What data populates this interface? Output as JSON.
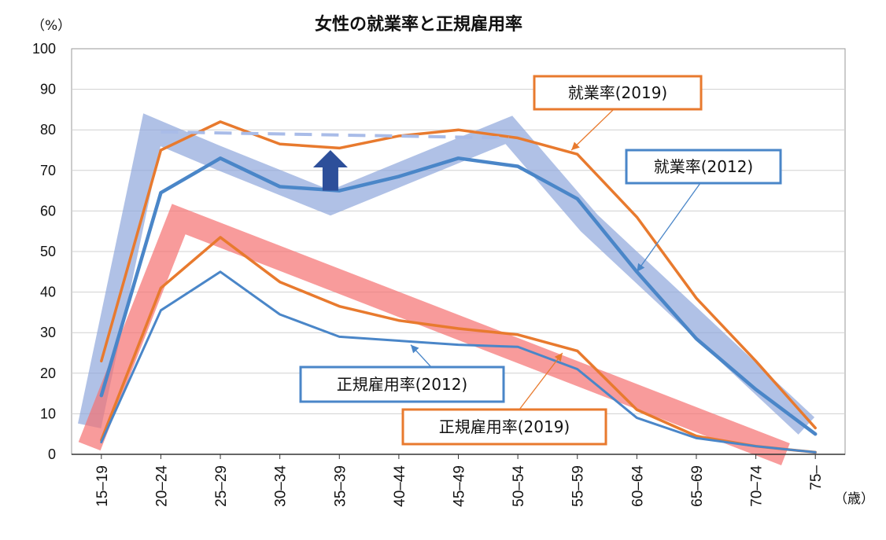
{
  "chart_data": {
    "type": "line",
    "title": "女性の就業率と正規雇用率",
    "y_unit": "（%）",
    "x_unit": "（歳）",
    "ylim": [
      0,
      100
    ],
    "yticks": [
      0,
      10,
      20,
      30,
      40,
      50,
      60,
      70,
      80,
      90,
      100
    ],
    "grid": true,
    "categories": [
      "15–19",
      "20–24",
      "25–29",
      "30–34",
      "35–39",
      "40–44",
      "45–49",
      "50–54",
      "55–59",
      "60–64",
      "65–69",
      "70–74",
      "75–"
    ],
    "series": [
      {
        "name": "就業率(2019)",
        "color": "#E87A2E",
        "values": [
          23,
          75,
          82,
          76.5,
          75.5,
          78.5,
          80,
          78,
          74,
          58.5,
          38.5,
          23,
          6.5
        ]
      },
      {
        "name": "就業率(2012)",
        "color": "#4A86C8",
        "values": [
          14.5,
          64.5,
          73,
          66,
          65,
          68.5,
          73,
          71,
          63,
          45,
          28.5,
          16,
          5
        ]
      },
      {
        "name": "正規雇用率(2019)",
        "color": "#E87A2E",
        "values": [
          3.5,
          41,
          53.5,
          42.5,
          36.5,
          33,
          31,
          29.5,
          25.5,
          11,
          4.5,
          2,
          0.5
        ]
      },
      {
        "name": "正規雇用率(2012)",
        "color": "#4A86C8",
        "values": [
          3,
          35.5,
          45,
          34.5,
          29,
          28,
          27,
          26.5,
          21,
          9,
          4,
          2,
          0.5
        ]
      }
    ],
    "highlight_bands": [
      {
        "color": "#8FA7DC",
        "points": [
          [
            -0.2,
            7
          ],
          [
            0.85,
            80
          ],
          [
            1.9,
            73.5
          ],
          [
            3.85,
            62
          ],
          [
            6.85,
            80
          ],
          [
            8.2,
            57
          ],
          [
            11.85,
            7
          ]
        ]
      },
      {
        "color": "#F57070",
        "points": [
          [
            -0.2,
            2
          ],
          [
            1.3,
            58
          ],
          [
            11.5,
            0
          ]
        ]
      }
    ],
    "dashed_line": {
      "color": "#A9BCE8",
      "points": [
        [
          1.0,
          79.5
        ],
        [
          6.85,
          78
        ]
      ]
    },
    "arrow": {
      "color": "#2D4F9A",
      "x": 3.85,
      "y_from": 65,
      "y_to": 75
    }
  },
  "callouts": [
    {
      "label": "就業率(2019)",
      "color": "#E87A2E",
      "target_x": 7.9,
      "target_y": 75
    },
    {
      "label": "就業率(2012)",
      "color": "#4A86C8",
      "target_x": 9.0,
      "target_y": 45
    },
    {
      "label": "正規雇用率(2012)",
      "color": "#4A86C8",
      "target_x": 5.2,
      "target_y": 27
    },
    {
      "label": "正規雇用率(2019)",
      "color": "#E87A2E",
      "target_x": 7.75,
      "target_y": 25
    }
  ]
}
